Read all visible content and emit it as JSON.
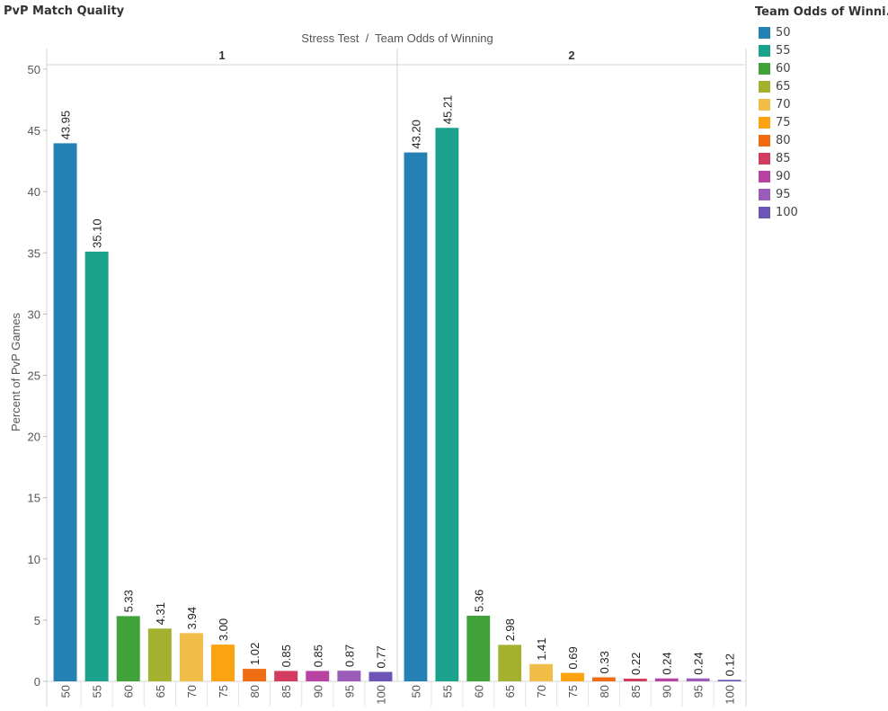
{
  "chart_data": {
    "type": "bar",
    "title": "PvP Match Quality",
    "header": "Stress Test  /  Team Odds of Winning",
    "ylabel": "Percent of PvP Games",
    "ylim": [
      0,
      50
    ],
    "yticks": [
      0,
      5,
      10,
      15,
      20,
      25,
      30,
      35,
      40,
      45,
      50
    ],
    "categories": [
      "50",
      "55",
      "60",
      "65",
      "70",
      "75",
      "80",
      "85",
      "90",
      "95",
      "100"
    ],
    "colors": [
      "#2580b3",
      "#1aa28c",
      "#41a13a",
      "#a3b12e",
      "#efbd48",
      "#fca311",
      "#f06c13",
      "#d23c5e",
      "#b642a2",
      "#9b5cb8",
      "#6d55b6"
    ],
    "panels": [
      {
        "name": "1",
        "values": [
          43.95,
          35.1,
          5.33,
          4.31,
          3.94,
          3.0,
          1.02,
          0.85,
          0.85,
          0.87,
          0.77
        ],
        "labels": [
          "43.95",
          "35.10",
          "5.33",
          "4.31",
          "3.94",
          "3.00",
          "1.02",
          "0.85",
          "0.85",
          "0.87",
          "0.77"
        ]
      },
      {
        "name": "2",
        "values": [
          43.2,
          45.21,
          5.36,
          2.98,
          1.41,
          0.69,
          0.33,
          0.22,
          0.24,
          0.24,
          0.12
        ],
        "labels": [
          "43.20",
          "45.21",
          "5.36",
          "2.98",
          "1.41",
          "0.69",
          "0.33",
          "0.22",
          "0.24",
          "0.24",
          "0.12"
        ]
      }
    ],
    "legend": {
      "title": "Team Odds of Winni..",
      "position": "right",
      "items": [
        "50",
        "55",
        "60",
        "65",
        "70",
        "75",
        "80",
        "85",
        "90",
        "95",
        "100"
      ]
    }
  }
}
